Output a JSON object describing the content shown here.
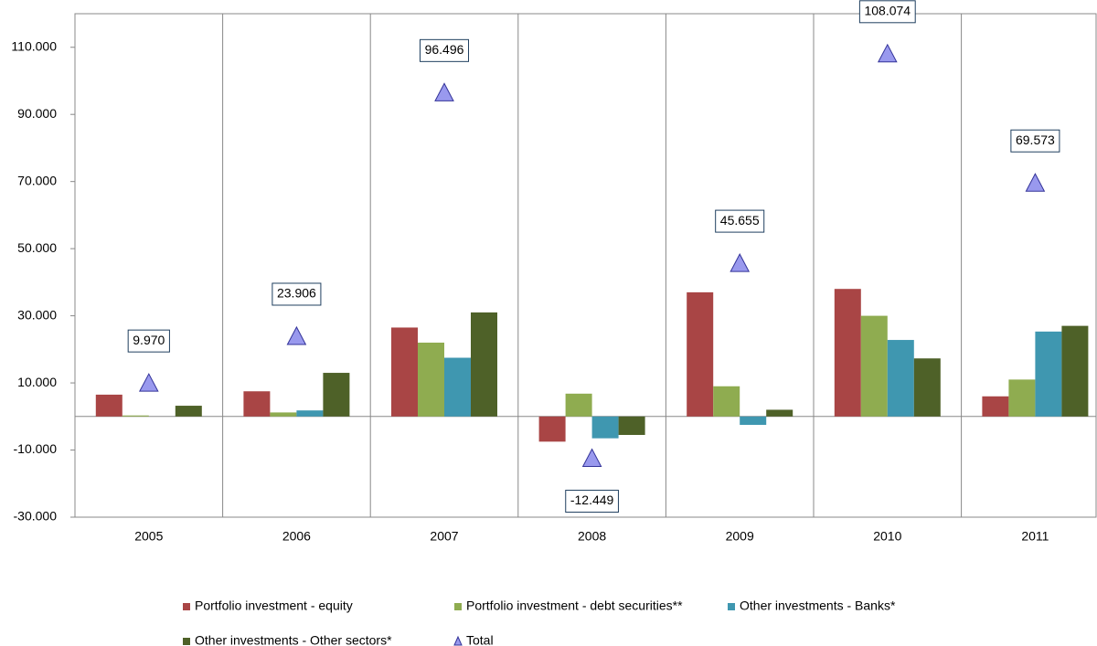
{
  "chart_data": {
    "type": "bar",
    "categories": [
      "2005",
      "2006",
      "2007",
      "2008",
      "2009",
      "2010",
      "2011"
    ],
    "series": [
      {
        "name": "Portfolio investment - equity",
        "color": "#a94545",
        "values": [
          6500,
          7500,
          26500,
          -7500,
          37000,
          38000,
          6000
        ]
      },
      {
        "name": "Portfolio investment - debt securities**",
        "color": "#8fac50",
        "values": [
          300,
          1200,
          22000,
          6800,
          9000,
          30000,
          11000
        ]
      },
      {
        "name": "Other investments - Banks*",
        "color": "#3f97b0",
        "values": [
          0,
          1800,
          17500,
          -6500,
          -2500,
          22800,
          25300
        ]
      },
      {
        "name": "Other investments - Other sectors*",
        "color": "#4e6128",
        "values": [
          3200,
          13000,
          31000,
          -5500,
          2000,
          17300,
          27000
        ]
      },
      {
        "name": "Total",
        "color": "#9999ee",
        "marker": "triangle",
        "values": [
          9970,
          23906,
          96496,
          -12449,
          45655,
          108074,
          69573
        ],
        "value_labels": [
          "9.970",
          "23.906",
          "96.496",
          "-12.449",
          "45.655",
          "108.074",
          "69.573"
        ]
      }
    ],
    "ylim": [
      -30000,
      120000
    ],
    "yticks": [
      {
        "value": -30000,
        "label": "-30.000"
      },
      {
        "value": -10000,
        "label": "-10.000"
      },
      {
        "value": 10000,
        "label": "10.000"
      },
      {
        "value": 30000,
        "label": "30.000"
      },
      {
        "value": 50000,
        "label": "50.000"
      },
      {
        "value": 70000,
        "label": "70.000"
      },
      {
        "value": 90000,
        "label": "90.000"
      },
      {
        "value": 110000,
        "label": "110.000"
      }
    ]
  }
}
